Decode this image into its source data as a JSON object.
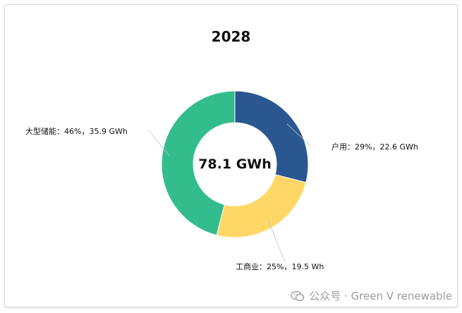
{
  "chart_data": {
    "type": "pie",
    "title": "2028",
    "center_label": "78.1 GWh",
    "slices": [
      {
        "name": "户用",
        "percent": 29,
        "value": 22.6,
        "unit": "GWh",
        "label": "户用：29%，22.6 GWh",
        "color": "#2a578f"
      },
      {
        "name": "工商业",
        "percent": 25,
        "value": 19.5,
        "unit": "Wh",
        "label": "工商业：25%，19.5 Wh",
        "color": "#ffd766"
      },
      {
        "name": "大型储能",
        "percent": 46,
        "value": 35.9,
        "unit": "GWh",
        "label": "大型储能：46%，35.9 GWh",
        "color": "#34bd8c"
      }
    ]
  },
  "watermark": {
    "text": "公众号 · Green V renewable"
  }
}
